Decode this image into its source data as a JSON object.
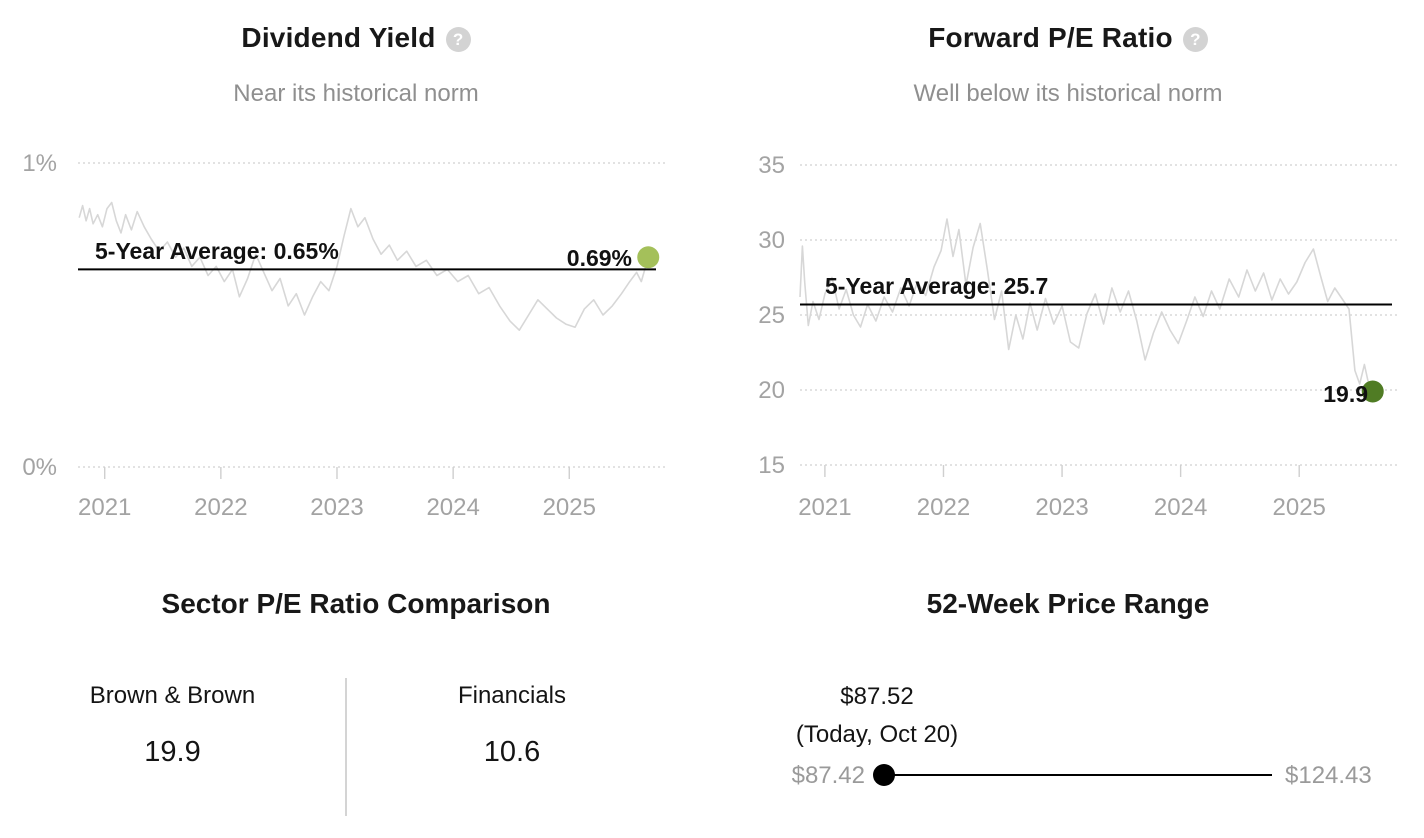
{
  "colors": {
    "dividend_dot": "#a4c05a",
    "forward_dot": "#507c24",
    "series_line": "#d7d7d7",
    "grid_line": "#d9d9d9",
    "average_line": "#000000",
    "muted_text": "#8f8f8f"
  },
  "panels": {
    "dividend_yield": {
      "title": "Dividend Yield",
      "help_icon": "?",
      "subtitle": "Near its historical norm"
    },
    "forward_pe": {
      "title": "Forward P/E Ratio",
      "help_icon": "?",
      "subtitle": "Well below its historical norm"
    },
    "sector_pe": {
      "title": "Sector P/E Ratio Comparison",
      "left": {
        "label": "Brown & Brown",
        "value": "19.9"
      },
      "right": {
        "label": "Financials",
        "value": "10.6"
      }
    },
    "price_range": {
      "title": "52-Week Price Range",
      "current_price": "$87.52",
      "current_date": "(Today, Oct 20)",
      "low": "$87.42",
      "high": "$124.43"
    }
  },
  "chart_data": [
    {
      "id": "chart-left",
      "type": "line",
      "title": "Dividend Yield",
      "subtitle": "Near its historical norm",
      "ylabel": "Dividend Yield %",
      "xlim": [
        2020.77,
        2025.85
      ],
      "ylim": [
        0,
        1
      ],
      "yticks": [
        {
          "value": 1,
          "label": "1%"
        },
        {
          "value": 0,
          "label": "0%"
        }
      ],
      "xticks": [
        {
          "value": 2021,
          "label": "2021"
        },
        {
          "value": 2022,
          "label": "2022"
        },
        {
          "value": 2023,
          "label": "2023"
        },
        {
          "value": 2024,
          "label": "2024"
        },
        {
          "value": 2025,
          "label": "2025"
        }
      ],
      "grid": "dotted-horizontal",
      "average_line": {
        "value": 0.65,
        "label": "5-Year Average: 0.65%"
      },
      "last_point": [
        2025.68,
        0.69
      ],
      "last_value_label": "0.69%",
      "line_color": "#d7d7d7",
      "dot_color": "#a4c05a",
      "series": [
        {
          "name": "Dividend Yield",
          "points": [
            [
              2020.78,
              0.82
            ],
            [
              2020.81,
              0.86
            ],
            [
              2020.84,
              0.81
            ],
            [
              2020.87,
              0.85
            ],
            [
              2020.9,
              0.8
            ],
            [
              2020.94,
              0.83
            ],
            [
              2020.98,
              0.79
            ],
            [
              2021.02,
              0.85
            ],
            [
              2021.06,
              0.87
            ],
            [
              2021.1,
              0.81
            ],
            [
              2021.14,
              0.77
            ],
            [
              2021.18,
              0.83
            ],
            [
              2021.23,
              0.78
            ],
            [
              2021.28,
              0.84
            ],
            [
              2021.34,
              0.79
            ],
            [
              2021.4,
              0.75
            ],
            [
              2021.47,
              0.71
            ],
            [
              2021.54,
              0.74
            ],
            [
              2021.61,
              0.69
            ],
            [
              2021.68,
              0.72
            ],
            [
              2021.75,
              0.66
            ],
            [
              2021.82,
              0.69
            ],
            [
              2021.89,
              0.63
            ],
            [
              2021.96,
              0.66
            ],
            [
              2022.03,
              0.61
            ],
            [
              2022.1,
              0.65
            ],
            [
              2022.16,
              0.56
            ],
            [
              2022.23,
              0.62
            ],
            [
              2022.3,
              0.7
            ],
            [
              2022.37,
              0.64
            ],
            [
              2022.44,
              0.58
            ],
            [
              2022.51,
              0.62
            ],
            [
              2022.58,
              0.53
            ],
            [
              2022.65,
              0.57
            ],
            [
              2022.72,
              0.5
            ],
            [
              2022.79,
              0.56
            ],
            [
              2022.86,
              0.61
            ],
            [
              2022.93,
              0.58
            ],
            [
              2023.0,
              0.66
            ],
            [
              2023.06,
              0.76
            ],
            [
              2023.12,
              0.85
            ],
            [
              2023.18,
              0.79
            ],
            [
              2023.24,
              0.82
            ],
            [
              2023.31,
              0.75
            ],
            [
              2023.38,
              0.7
            ],
            [
              2023.45,
              0.73
            ],
            [
              2023.52,
              0.68
            ],
            [
              2023.6,
              0.71
            ],
            [
              2023.68,
              0.66
            ],
            [
              2023.77,
              0.68
            ],
            [
              2023.86,
              0.63
            ],
            [
              2023.95,
              0.65
            ],
            [
              2024.04,
              0.61
            ],
            [
              2024.13,
              0.63
            ],
            [
              2024.22,
              0.57
            ],
            [
              2024.31,
              0.59
            ],
            [
              2024.4,
              0.53
            ],
            [
              2024.49,
              0.48
            ],
            [
              2024.57,
              0.45
            ],
            [
              2024.65,
              0.5
            ],
            [
              2024.73,
              0.55
            ],
            [
              2024.81,
              0.52
            ],
            [
              2024.89,
              0.49
            ],
            [
              2024.97,
              0.47
            ],
            [
              2025.05,
              0.46
            ],
            [
              2025.13,
              0.52
            ],
            [
              2025.21,
              0.55
            ],
            [
              2025.29,
              0.5
            ],
            [
              2025.37,
              0.53
            ],
            [
              2025.45,
              0.57
            ],
            [
              2025.52,
              0.61
            ],
            [
              2025.58,
              0.64
            ],
            [
              2025.62,
              0.61
            ],
            [
              2025.65,
              0.65
            ],
            [
              2025.68,
              0.69
            ]
          ]
        }
      ],
      "layout": {
        "x0": 78,
        "x1": 668,
        "yTop": 163,
        "yBottom": 467,
        "ylabelX": 57,
        "avgX1": 656,
        "avgLabelX": 95,
        "avgLabelY": 259,
        "valueLabelX": 632,
        "valueLabelY": 266,
        "tickLen": 12,
        "tickLabelY": 515,
        "dotR": 11
      }
    },
    {
      "id": "chart-right",
      "type": "line",
      "title": "Forward P/E Ratio",
      "subtitle": "Well below its historical norm",
      "ylabel": "Forward P/E",
      "xlim": [
        2020.79,
        2025.85
      ],
      "ylim": [
        15,
        35
      ],
      "yticks": [
        {
          "value": 35,
          "label": "35"
        },
        {
          "value": 30,
          "label": "30"
        },
        {
          "value": 25,
          "label": "25"
        },
        {
          "value": 20,
          "label": "20"
        },
        {
          "value": 15,
          "label": "15"
        }
      ],
      "xticks": [
        {
          "value": 2021,
          "label": "2021"
        },
        {
          "value": 2022,
          "label": "2022"
        },
        {
          "value": 2023,
          "label": "2023"
        },
        {
          "value": 2024,
          "label": "2024"
        },
        {
          "value": 2025,
          "label": "2025"
        }
      ],
      "grid": "dotted-horizontal",
      "average_line": {
        "value": 25.7,
        "label": "5-Year Average: 25.7"
      },
      "last_point": [
        2025.62,
        19.9
      ],
      "last_value_label": "19.9",
      "line_color": "#d7d7d7",
      "dot_color": "#507c24",
      "series": [
        {
          "name": "Forward P/E Ratio",
          "points": [
            [
              2020.79,
              26.2
            ],
            [
              2020.81,
              29.6
            ],
            [
              2020.83,
              27.2
            ],
            [
              2020.86,
              24.3
            ],
            [
              2020.9,
              25.9
            ],
            [
              2020.95,
              24.7
            ],
            [
              2021.0,
              26.4
            ],
            [
              2021.06,
              27.5
            ],
            [
              2021.12,
              25.4
            ],
            [
              2021.18,
              26.7
            ],
            [
              2021.24,
              25.0
            ],
            [
              2021.3,
              24.2
            ],
            [
              2021.36,
              25.7
            ],
            [
              2021.43,
              24.6
            ],
            [
              2021.5,
              26.2
            ],
            [
              2021.57,
              25.2
            ],
            [
              2021.64,
              26.8
            ],
            [
              2021.71,
              25.6
            ],
            [
              2021.78,
              27.2
            ],
            [
              2021.85,
              26.3
            ],
            [
              2021.92,
              28.2
            ],
            [
              2021.98,
              29.3
            ],
            [
              2022.03,
              31.4
            ],
            [
              2022.08,
              28.9
            ],
            [
              2022.13,
              30.7
            ],
            [
              2022.19,
              27.0
            ],
            [
              2022.25,
              29.5
            ],
            [
              2022.31,
              31.1
            ],
            [
              2022.37,
              28.0
            ],
            [
              2022.43,
              24.7
            ],
            [
              2022.49,
              26.6
            ],
            [
              2022.55,
              22.7
            ],
            [
              2022.61,
              25.0
            ],
            [
              2022.67,
              23.4
            ],
            [
              2022.73,
              25.8
            ],
            [
              2022.79,
              24.0
            ],
            [
              2022.86,
              26.1
            ],
            [
              2022.93,
              24.4
            ],
            [
              2023.0,
              25.6
            ],
            [
              2023.07,
              23.2
            ],
            [
              2023.14,
              22.8
            ],
            [
              2023.21,
              25.1
            ],
            [
              2023.28,
              26.4
            ],
            [
              2023.35,
              24.4
            ],
            [
              2023.42,
              26.8
            ],
            [
              2023.49,
              25.2
            ],
            [
              2023.56,
              26.6
            ],
            [
              2023.63,
              24.6
            ],
            [
              2023.7,
              22.0
            ],
            [
              2023.77,
              23.8
            ],
            [
              2023.84,
              25.2
            ],
            [
              2023.91,
              24.0
            ],
            [
              2023.98,
              23.1
            ],
            [
              2024.05,
              24.6
            ],
            [
              2024.12,
              26.2
            ],
            [
              2024.19,
              24.9
            ],
            [
              2024.26,
              26.6
            ],
            [
              2024.33,
              25.4
            ],
            [
              2024.41,
              27.4
            ],
            [
              2024.49,
              26.2
            ],
            [
              2024.56,
              28.0
            ],
            [
              2024.63,
              26.6
            ],
            [
              2024.7,
              27.8
            ],
            [
              2024.77,
              26.0
            ],
            [
              2024.84,
              27.4
            ],
            [
              2024.91,
              26.4
            ],
            [
              2024.98,
              27.2
            ],
            [
              2025.05,
              28.5
            ],
            [
              2025.12,
              29.4
            ],
            [
              2025.18,
              27.6
            ],
            [
              2025.24,
              25.9
            ],
            [
              2025.3,
              26.8
            ],
            [
              2025.36,
              26.1
            ],
            [
              2025.42,
              25.4
            ],
            [
              2025.47,
              21.3
            ],
            [
              2025.51,
              20.4
            ],
            [
              2025.55,
              21.7
            ],
            [
              2025.58,
              20.6
            ],
            [
              2025.62,
              19.9
            ]
          ]
        }
      ],
      "layout": {
        "x0": 88,
        "x1": 688,
        "yTop": 165,
        "yBottom": 465,
        "ylabelX": 73,
        "avgX1": 680,
        "avgLabelX": 113,
        "avgLabelY": 294,
        "valueLabelX": 656,
        "valueLabelY": 402,
        "tickLen": 12,
        "tickLabelY": 515,
        "dotR": 11
      }
    }
  ]
}
